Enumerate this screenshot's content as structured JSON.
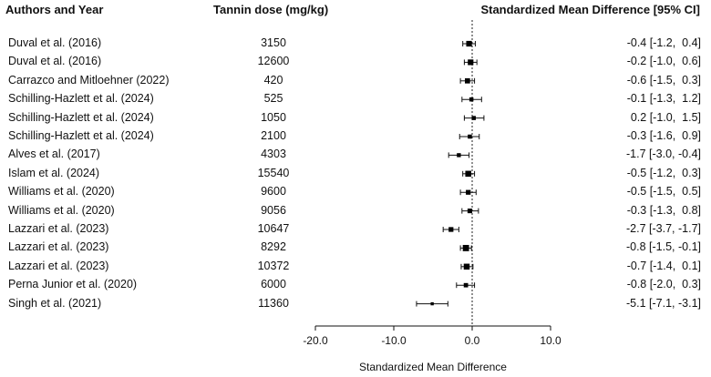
{
  "chart_data": {
    "type": "forest",
    "headers": {
      "authors": "Authors and Year",
      "dose": "Tannin dose (mg/kg)",
      "smd": "Standardized Mean Difference [95% CI]"
    },
    "xlabel": "Standardized Mean Difference",
    "xlim": [
      -20,
      10
    ],
    "xticks": [
      -20,
      -10,
      0,
      10
    ],
    "xtick_labels": [
      "-20.0",
      "-10.0",
      "0.0",
      "10.0"
    ],
    "reference_line": 0,
    "studies": [
      {
        "author": "Duval et al. (2016)",
        "dose": "3150",
        "est": -0.4,
        "lo": -1.2,
        "hi": 0.4,
        "ci_text": "-0.4 [-1.2,  0.4]"
      },
      {
        "author": "Duval et al. (2016)",
        "dose": "12600",
        "est": -0.2,
        "lo": -1.0,
        "hi": 0.6,
        "ci_text": "-0.2 [-1.0,  0.6]"
      },
      {
        "author": "Carrazco and Mitloehner (2022)",
        "dose": "420",
        "est": -0.6,
        "lo": -1.5,
        "hi": 0.3,
        "ci_text": "-0.6 [-1.5,  0.3]"
      },
      {
        "author": "Schilling-Hazlett et al. (2024)",
        "dose": "525",
        "est": -0.1,
        "lo": -1.3,
        "hi": 1.2,
        "ci_text": "-0.1 [-1.3,  1.2]"
      },
      {
        "author": "Schilling-Hazlett et al. (2024)",
        "dose": "1050",
        "est": 0.2,
        "lo": -1.0,
        "hi": 1.5,
        "ci_text": "0.2 [-1.0,  1.5]"
      },
      {
        "author": "Schilling-Hazlett et al. (2024)",
        "dose": "2100",
        "est": -0.3,
        "lo": -1.6,
        "hi": 0.9,
        "ci_text": "-0.3 [-1.6,  0.9]"
      },
      {
        "author": "Alves et al. (2017)",
        "dose": "4303",
        "est": -1.7,
        "lo": -3.0,
        "hi": -0.4,
        "ci_text": "-1.7 [-3.0, -0.4]"
      },
      {
        "author": "Islam et al. (2024)",
        "dose": "15540",
        "est": -0.5,
        "lo": -1.2,
        "hi": 0.3,
        "ci_text": "-0.5 [-1.2,  0.3]"
      },
      {
        "author": "Williams et al. (2020)",
        "dose": "9600",
        "est": -0.5,
        "lo": -1.5,
        "hi": 0.5,
        "ci_text": "-0.5 [-1.5,  0.5]"
      },
      {
        "author": "Williams et al. (2020)",
        "dose": "9056",
        "est": -0.3,
        "lo": -1.3,
        "hi": 0.8,
        "ci_text": "-0.3 [-1.3,  0.8]"
      },
      {
        "author": "Lazzari et al. (2023)",
        "dose": "10647",
        "est": -2.7,
        "lo": -3.7,
        "hi": -1.7,
        "ci_text": "-2.7 [-3.7, -1.7]"
      },
      {
        "author": "Lazzari et al. (2023)",
        "dose": "8292",
        "est": -0.8,
        "lo": -1.5,
        "hi": -0.1,
        "ci_text": "-0.8 [-1.5, -0.1]"
      },
      {
        "author": "Lazzari et al. (2023)",
        "dose": "10372",
        "est": -0.7,
        "lo": -1.4,
        "hi": 0.1,
        "ci_text": "-0.7 [-1.4,  0.1]"
      },
      {
        "author": "Perna Junior et al. (2020)",
        "dose": "6000",
        "est": -0.8,
        "lo": -2.0,
        "hi": 0.3,
        "ci_text": "-0.8 [-2.0,  0.3]"
      },
      {
        "author": "Singh et al. (2021)",
        "dose": "11360",
        "est": -5.1,
        "lo": -7.1,
        "hi": -3.1,
        "ci_text": "-5.1 [-7.1, -3.1]"
      }
    ]
  }
}
